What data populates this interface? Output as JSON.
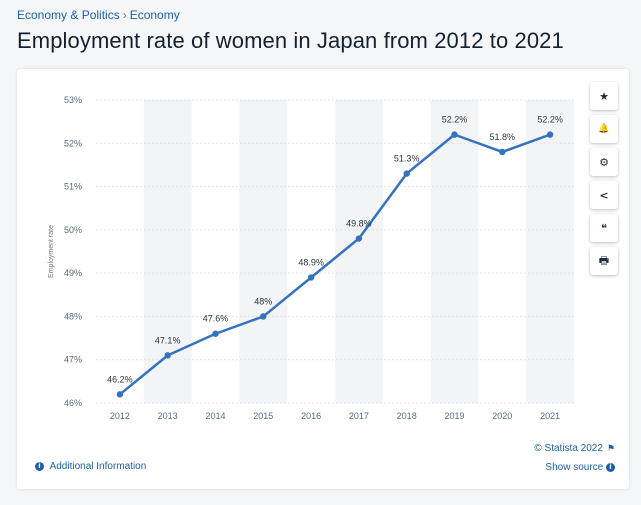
{
  "breadcrumb": {
    "section": "Economy & Politics",
    "separator": "›",
    "subsection": "Economy"
  },
  "title": "Employment rate of women in Japan from 2012 to 2021",
  "toolbar": {
    "star_icon": "★",
    "bell_icon": "🔔",
    "gear_icon": "⚙",
    "share_icon": "<",
    "quote_icon": "❝",
    "print_icon": "🖶"
  },
  "footer": {
    "copyright": "© Statista 2022",
    "show_source": "Show source",
    "additional_info": "Additional Information",
    "info_glyph": "i"
  },
  "colors": {
    "accent": "#1f5fa8",
    "line": "#3572c0",
    "band": "#f3f4f6",
    "grid": "#dfe3e8"
  },
  "chart_data": {
    "type": "line",
    "title": "Employment rate of women in Japan from 2012 to 2021",
    "xlabel": "",
    "ylabel": "Employment rate",
    "categories": [
      "2012",
      "2013",
      "2014",
      "2015",
      "2016",
      "2017",
      "2018",
      "2019",
      "2020",
      "2021"
    ],
    "values": [
      46.2,
      47.1,
      47.6,
      48.0,
      48.9,
      49.8,
      51.3,
      52.2,
      51.8,
      52.2
    ],
    "data_labels": [
      "46.2%",
      "47.1%",
      "47.6%",
      "48%",
      "48.9%",
      "49.8%",
      "51.3%",
      "52.2%",
      "51.8%",
      "52.2%"
    ],
    "yticks": [
      "46%",
      "47%",
      "48%",
      "49%",
      "50%",
      "51%",
      "52%",
      "53%"
    ],
    "ylim": [
      46,
      53
    ],
    "grid": true,
    "series_name": "Employment rate"
  }
}
